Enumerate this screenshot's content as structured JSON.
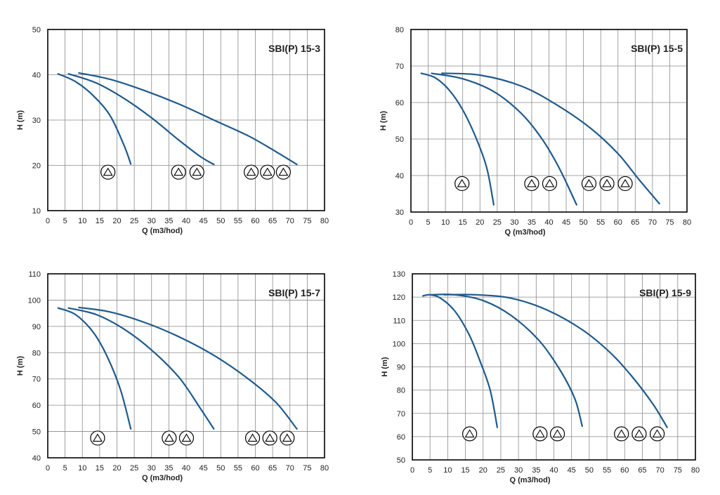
{
  "chart_data": [
    {
      "type": "line",
      "title": "SBI(P) 15-3",
      "xlabel": "Q (m3/hod)",
      "ylabel": "H (m)",
      "xlim": [
        0,
        80
      ],
      "ylim": [
        10,
        50
      ],
      "xticks": [
        0,
        5,
        10,
        15,
        20,
        25,
        30,
        35,
        40,
        45,
        50,
        55,
        60,
        65,
        70,
        75,
        80
      ],
      "yticks": [
        10,
        20,
        30,
        40,
        50
      ],
      "grid": true,
      "series": [
        {
          "values": [
            [
              3,
              40.2
            ],
            [
              8,
              38.5
            ],
            [
              13,
              35.5
            ],
            [
              18,
              31
            ],
            [
              22,
              24.5
            ],
            [
              24,
              20.3
            ]
          ]
        },
        {
          "values": [
            [
              6,
              40.2
            ],
            [
              14,
              38.2
            ],
            [
              22,
              34.8
            ],
            [
              30,
              30.5
            ],
            [
              38,
              25.5
            ],
            [
              44,
              22
            ],
            [
              48,
              20.2
            ]
          ]
        },
        {
          "values": [
            [
              9,
              40.4
            ],
            [
              18,
              39
            ],
            [
              28,
              36.5
            ],
            [
              38,
              33.5
            ],
            [
              48,
              30
            ],
            [
              58,
              26.5
            ],
            [
              66,
              23
            ],
            [
              72,
              20.2
            ]
          ]
        }
      ],
      "markers": [
        {
          "count": 1,
          "x": 17.4,
          "y": 18.5
        },
        {
          "count": 2,
          "x": 37.8,
          "y": 18.5
        },
        {
          "count": 2,
          "x": 43.1,
          "y": 18.5
        },
        {
          "count": 3,
          "x": 58.8,
          "y": 18.5
        },
        {
          "count": 3,
          "x": 63.5,
          "y": 18.5
        },
        {
          "count": 3,
          "x": 68.1,
          "y": 18.5
        }
      ]
    },
    {
      "type": "line",
      "title": "SBI(P) 15-5",
      "xlabel": "Q (m3/hod)",
      "ylabel": "H (m)",
      "xlim": [
        0,
        80
      ],
      "ylim": [
        30,
        80
      ],
      "xticks": [
        0,
        5,
        10,
        15,
        20,
        25,
        30,
        35,
        40,
        45,
        50,
        55,
        60,
        65,
        70,
        75,
        80
      ],
      "yticks": [
        30,
        40,
        50,
        60,
        70,
        80
      ],
      "grid": true,
      "series": [
        {
          "values": [
            [
              3,
              68
            ],
            [
              7,
              66.8
            ],
            [
              11,
              63.5
            ],
            [
              15,
              58
            ],
            [
              19,
              50
            ],
            [
              22,
              42
            ],
            [
              24,
              32
            ]
          ]
        },
        {
          "values": [
            [
              6,
              68
            ],
            [
              15,
              66.5
            ],
            [
              24,
              63
            ],
            [
              32,
              57
            ],
            [
              38,
              50
            ],
            [
              43,
              42
            ],
            [
              48,
              32
            ]
          ]
        },
        {
          "values": [
            [
              9,
              68
            ],
            [
              20,
              67.5
            ],
            [
              32,
              64.5
            ],
            [
              42,
              59.5
            ],
            [
              52,
              53
            ],
            [
              60,
              46
            ],
            [
              66,
              39
            ],
            [
              72,
              32.3
            ]
          ]
        }
      ],
      "markers": [
        {
          "count": 1,
          "x": 14.8,
          "y": 37.8
        },
        {
          "count": 2,
          "x": 35.0,
          "y": 37.8
        },
        {
          "count": 2,
          "x": 40.2,
          "y": 37.8
        },
        {
          "count": 3,
          "x": 51.6,
          "y": 37.8
        },
        {
          "count": 3,
          "x": 56.8,
          "y": 37.8
        },
        {
          "count": 3,
          "x": 62.1,
          "y": 37.8
        }
      ]
    },
    {
      "type": "line",
      "title": "SBI(P) 15-7",
      "xlabel": "Q (m3/hod)",
      "ylabel": "H (m)",
      "xlim": [
        0,
        80
      ],
      "ylim": [
        40,
        110
      ],
      "xticks": [
        0,
        5,
        10,
        15,
        20,
        25,
        30,
        35,
        40,
        45,
        50,
        55,
        60,
        65,
        70,
        75,
        80
      ],
      "yticks": [
        40,
        50,
        60,
        70,
        80,
        90,
        100,
        110
      ],
      "grid": true,
      "series": [
        {
          "values": [
            [
              3,
              97
            ],
            [
              8,
              94.5
            ],
            [
              13,
              88
            ],
            [
              17,
              79
            ],
            [
              21,
              66
            ],
            [
              24,
              51
            ]
          ]
        },
        {
          "values": [
            [
              6,
              97
            ],
            [
              14,
              94.5
            ],
            [
              22,
              89
            ],
            [
              30,
              81
            ],
            [
              38,
              70.5
            ],
            [
              44,
              59
            ],
            [
              48,
              51
            ]
          ]
        },
        {
          "values": [
            [
              9,
              97.2
            ],
            [
              18,
              95.5
            ],
            [
              28,
              91.5
            ],
            [
              38,
              86
            ],
            [
              48,
              79
            ],
            [
              58,
              70
            ],
            [
              66,
              61
            ],
            [
              72,
              51
            ]
          ]
        }
      ],
      "markers": [
        {
          "count": 1,
          "x": 14.4,
          "y": 47.5
        },
        {
          "count": 2,
          "x": 35.1,
          "y": 47.5
        },
        {
          "count": 2,
          "x": 40.1,
          "y": 47.5
        },
        {
          "count": 3,
          "x": 59.2,
          "y": 47.5
        },
        {
          "count": 3,
          "x": 64.2,
          "y": 47.5
        },
        {
          "count": 3,
          "x": 69.2,
          "y": 47.5
        }
      ]
    },
    {
      "type": "line",
      "title": "SBI(P) 15-9",
      "xlabel": "Q (m3/hod)",
      "ylabel": "H (m)",
      "xlim": [
        0,
        80
      ],
      "ylim": [
        50,
        130
      ],
      "xticks": [
        0,
        5,
        10,
        15,
        20,
        25,
        30,
        35,
        40,
        45,
        50,
        55,
        60,
        65,
        70,
        75,
        80
      ],
      "yticks": [
        50,
        60,
        70,
        80,
        90,
        100,
        110,
        120,
        130
      ],
      "grid": true,
      "series": [
        {
          "values": [
            [
              3,
              120.5
            ],
            [
              5,
              121
            ],
            [
              8,
              119.5
            ],
            [
              12,
              114
            ],
            [
              16,
              104
            ],
            [
              19,
              93
            ],
            [
              22,
              80
            ],
            [
              24,
              64
            ]
          ]
        },
        {
          "values": [
            [
              5,
              121
            ],
            [
              12,
              121
            ],
            [
              20,
              118.5
            ],
            [
              28,
              112
            ],
            [
              36,
              101
            ],
            [
              42,
              88
            ],
            [
              46,
              76
            ],
            [
              48,
              64.5
            ]
          ]
        },
        {
          "values": [
            [
              9,
              121
            ],
            [
              18,
              121
            ],
            [
              28,
              119.5
            ],
            [
              38,
              114.5
            ],
            [
              48,
              106
            ],
            [
              56,
              96
            ],
            [
              62,
              86
            ],
            [
              68,
              74
            ],
            [
              72,
              64
            ]
          ]
        }
      ],
      "markers": [
        {
          "count": 1,
          "x": 16.2,
          "y": 61.2
        },
        {
          "count": 2,
          "x": 36.1,
          "y": 61.2
        },
        {
          "count": 2,
          "x": 41.0,
          "y": 61.2
        },
        {
          "count": 3,
          "x": 59.1,
          "y": 61.2
        },
        {
          "count": 3,
          "x": 64.1,
          "y": 61.2
        },
        {
          "count": 3,
          "x": 69.2,
          "y": 61.2
        }
      ]
    }
  ]
}
